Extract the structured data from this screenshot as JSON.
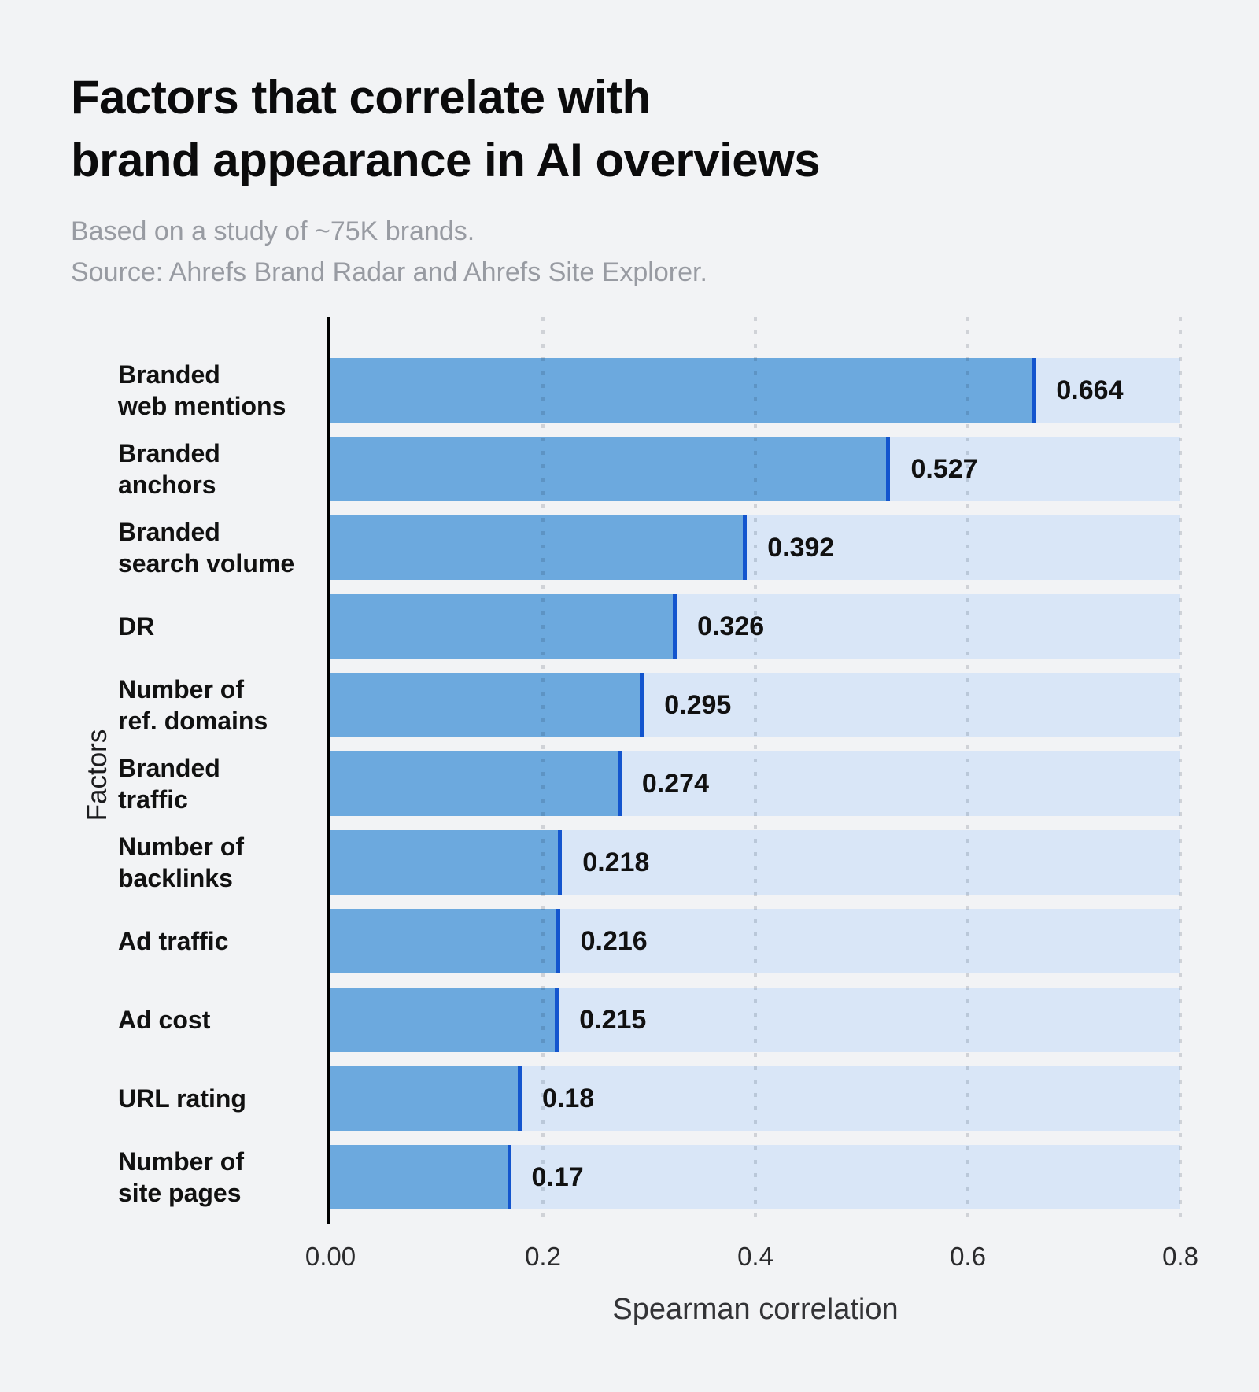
{
  "header": {
    "title_line1": "Factors that correlate with",
    "title_line2": "brand appearance in AI overviews",
    "subtitle_line1": "Based on a study of ~75K brands.",
    "subtitle_line2": "Source: Ahrefs Brand Radar and Ahrefs Site Explorer."
  },
  "colors": {
    "background": "#F2F3F5",
    "bar_fill": "#6CA9DE",
    "bar_edge_line": "#1355CE",
    "bar_track": "#D9E6F7",
    "title_text": "#0B0B0C",
    "subtitle_text": "#989BA2",
    "label_text": "#111111",
    "axis_line": "#000000",
    "gridline_dot": "rgba(10,25,45,0.15)"
  },
  "chart_data": {
    "type": "bar",
    "orientation": "horizontal",
    "title": "Factors that correlate with brand appearance in AI overviews",
    "subtitle": "Based on a study of ~75K brands. Source: Ahrefs Brand Radar and Ahrefs Site Explorer.",
    "xlabel": "Spearman correlation",
    "ylabel": "Factors",
    "xlim": [
      0,
      0.8
    ],
    "x_ticks": [
      "0.00",
      "0.2",
      "0.4",
      "0.6",
      "0.8"
    ],
    "x_tick_values": [
      0,
      0.2,
      0.4,
      0.6,
      0.8
    ],
    "grid": "vertical dotted gridlines at ticks, drawn over bars",
    "legend": "none",
    "categories": [
      "Branded\nweb mentions",
      "Branded\nanchors",
      "Branded\nsearch volume",
      "DR",
      "Number of\nref. domains",
      "Branded\ntraffic",
      "Number of\nbacklinks",
      "Ad traffic",
      "Ad cost",
      "URL rating",
      "Number of\nsite pages"
    ],
    "values": [
      0.664,
      0.527,
      0.392,
      0.326,
      0.295,
      0.274,
      0.218,
      0.216,
      0.215,
      0.18,
      0.17
    ],
    "value_labels": [
      "0.664",
      "0.527",
      "0.392",
      "0.326",
      "0.295",
      "0.274",
      "0.218",
      "0.216",
      "0.215",
      "0.18",
      "0.17"
    ]
  }
}
